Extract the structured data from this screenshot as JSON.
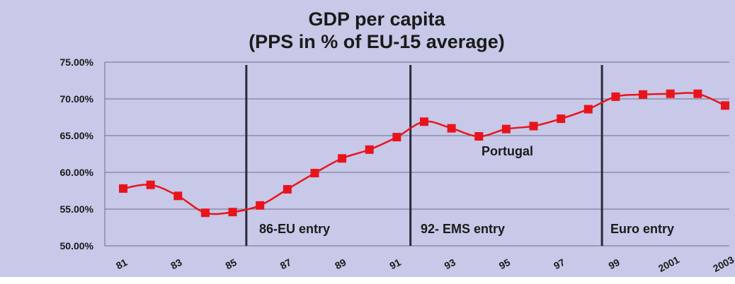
{
  "chart_data": {
    "type": "line",
    "title": "GDP per capita",
    "subtitle": "(PPS in % of EU-15 average)",
    "xlabel": "",
    "ylabel": "",
    "ylim": [
      50,
      75
    ],
    "y_ticks": [
      50,
      55,
      60,
      65,
      70,
      75
    ],
    "y_tick_labels": [
      "50.00%",
      "55.00%",
      "60.00%",
      "65.00%",
      "70.00%",
      "75.00%"
    ],
    "x": [
      1981,
      1982,
      1983,
      1984,
      1985,
      1986,
      1987,
      1988,
      1989,
      1990,
      1991,
      1992,
      1993,
      1994,
      1995,
      1996,
      1997,
      1998,
      1999,
      2000,
      2001,
      2002,
      2003
    ],
    "x_tick_labels": [
      {
        "x": 1981,
        "label": "81"
      },
      {
        "x": 1983,
        "label": "83"
      },
      {
        "x": 1985,
        "label": "85"
      },
      {
        "x": 1987,
        "label": "87"
      },
      {
        "x": 1989,
        "label": "89"
      },
      {
        "x": 1991,
        "label": "91"
      },
      {
        "x": 1993,
        "label": "93"
      },
      {
        "x": 1995,
        "label": "95"
      },
      {
        "x": 1997,
        "label": "97"
      },
      {
        "x": 1999,
        "label": "99"
      },
      {
        "x": 2001,
        "label": "2001"
      },
      {
        "x": 2003,
        "label": "2003"
      }
    ],
    "series": [
      {
        "name": "Portugal",
        "color": "#e8141c",
        "values": [
          57.8,
          58.3,
          56.8,
          54.5,
          54.6,
          55.5,
          57.7,
          59.9,
          61.9,
          63.1,
          64.8,
          66.9,
          66.0,
          64.9,
          65.9,
          66.3,
          67.3,
          68.6,
          70.3,
          70.6,
          70.7,
          70.7,
          69.1
        ]
      }
    ],
    "vertical_lines": [
      {
        "x": 1985.5,
        "label": "86-EU entry"
      },
      {
        "x": 1991.5,
        "label": "92- EMS entry"
      },
      {
        "x": 1998.5,
        "label": "Euro entry"
      }
    ],
    "grid": true,
    "legend": "none",
    "background_color": "#c8c8e8"
  }
}
